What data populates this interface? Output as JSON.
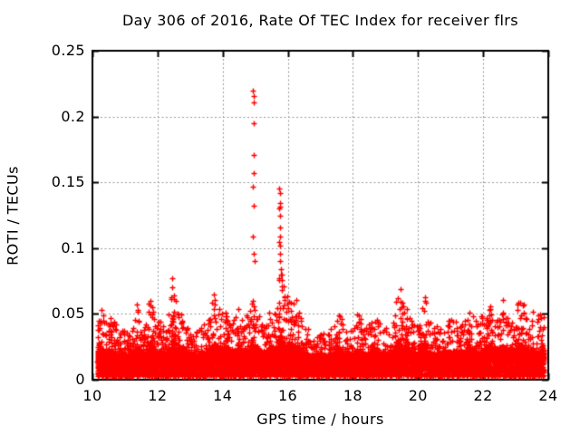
{
  "chart_data": {
    "type": "scatter",
    "title": "Day 306 of 2016, Rate Of TEC Index for receiver flrs",
    "xlabel": "GPS time / hours",
    "ylabel": "ROTI / TECUs",
    "xlim": [
      10,
      24
    ],
    "ylim": [
      0,
      0.25
    ],
    "xticks": [
      10,
      12,
      14,
      16,
      18,
      20,
      22,
      24
    ],
    "yticks": [
      0,
      0.05,
      0.1,
      0.15,
      0.2,
      0.25
    ],
    "ytick_labels": [
      "0",
      "0.05",
      "0.1",
      "0.15",
      "0.2",
      "0.25"
    ],
    "grid": true,
    "grid_color": "#9a9a9a",
    "border_color": "#000000",
    "marker": "plus",
    "marker_color": "#ff0000",
    "x_data_range": [
      10.15,
      23.87
    ],
    "background_points": 12000,
    "noise_floor": 0.0025,
    "envelope": [
      [
        10.15,
        0.042
      ],
      [
        10.28,
        0.052
      ],
      [
        10.45,
        0.038
      ],
      [
        10.6,
        0.05
      ],
      [
        10.8,
        0.034
      ],
      [
        11.0,
        0.036
      ],
      [
        11.2,
        0.033
      ],
      [
        11.38,
        0.06
      ],
      [
        11.52,
        0.038
      ],
      [
        11.65,
        0.042
      ],
      [
        11.78,
        0.072
      ],
      [
        11.95,
        0.036
      ],
      [
        12.1,
        0.047
      ],
      [
        12.3,
        0.037
      ],
      [
        12.45,
        0.08
      ],
      [
        12.62,
        0.05
      ],
      [
        12.75,
        0.058
      ],
      [
        12.9,
        0.038
      ],
      [
        13.1,
        0.033
      ],
      [
        13.3,
        0.037
      ],
      [
        13.55,
        0.042
      ],
      [
        13.76,
        0.074
      ],
      [
        13.95,
        0.046
      ],
      [
        14.1,
        0.058
      ],
      [
        14.28,
        0.043
      ],
      [
        14.45,
        0.054
      ],
      [
        14.62,
        0.043
      ],
      [
        14.8,
        0.05
      ],
      [
        14.95,
        0.065
      ],
      [
        15.12,
        0.046
      ],
      [
        15.3,
        0.043
      ],
      [
        15.5,
        0.056
      ],
      [
        15.65,
        0.05
      ],
      [
        15.78,
        0.088
      ],
      [
        15.95,
        0.06
      ],
      [
        16.12,
        0.066
      ],
      [
        16.3,
        0.056
      ],
      [
        16.5,
        0.039
      ],
      [
        16.7,
        0.034
      ],
      [
        16.9,
        0.031
      ],
      [
        17.1,
        0.033
      ],
      [
        17.35,
        0.037
      ],
      [
        17.6,
        0.053
      ],
      [
        17.8,
        0.033
      ],
      [
        18.0,
        0.037
      ],
      [
        18.15,
        0.05
      ],
      [
        18.35,
        0.037
      ],
      [
        18.55,
        0.045
      ],
      [
        18.75,
        0.046
      ],
      [
        19.0,
        0.039
      ],
      [
        19.2,
        0.043
      ],
      [
        19.4,
        0.074
      ],
      [
        19.57,
        0.056
      ],
      [
        19.75,
        0.046
      ],
      [
        19.95,
        0.037
      ],
      [
        20.18,
        0.064
      ],
      [
        20.4,
        0.039
      ],
      [
        20.6,
        0.043
      ],
      [
        20.8,
        0.037
      ],
      [
        21.0,
        0.047
      ],
      [
        21.2,
        0.041
      ],
      [
        21.4,
        0.045
      ],
      [
        21.6,
        0.057
      ],
      [
        21.8,
        0.043
      ],
      [
        22.0,
        0.05
      ],
      [
        22.25,
        0.063
      ],
      [
        22.45,
        0.043
      ],
      [
        22.6,
        0.06
      ],
      [
        22.8,
        0.043
      ],
      [
        23.0,
        0.055
      ],
      [
        23.15,
        0.066
      ],
      [
        23.35,
        0.046
      ],
      [
        23.5,
        0.051
      ],
      [
        23.65,
        0.043
      ],
      [
        23.8,
        0.058
      ],
      [
        23.87,
        0.048
      ]
    ],
    "outliers": [
      [
        14.94,
        0.22
      ],
      [
        14.96,
        0.2155
      ],
      [
        14.95,
        0.211
      ],
      [
        14.95,
        0.195
      ],
      [
        14.96,
        0.171
      ],
      [
        14.95,
        0.157
      ],
      [
        14.93,
        0.1465
      ],
      [
        14.96,
        0.1325
      ],
      [
        14.94,
        0.1085
      ],
      [
        14.95,
        0.096
      ],
      [
        14.97,
        0.0905
      ],
      [
        15.74,
        0.1455
      ],
      [
        15.76,
        0.142
      ],
      [
        15.75,
        0.134
      ],
      [
        15.76,
        0.1315
      ],
      [
        15.74,
        0.13
      ],
      [
        15.76,
        0.125
      ],
      [
        15.75,
        0.116
      ],
      [
        15.77,
        0.109
      ],
      [
        15.74,
        0.1045
      ],
      [
        15.76,
        0.102
      ],
      [
        15.75,
        0.0955
      ],
      [
        15.77,
        0.09
      ]
    ]
  }
}
